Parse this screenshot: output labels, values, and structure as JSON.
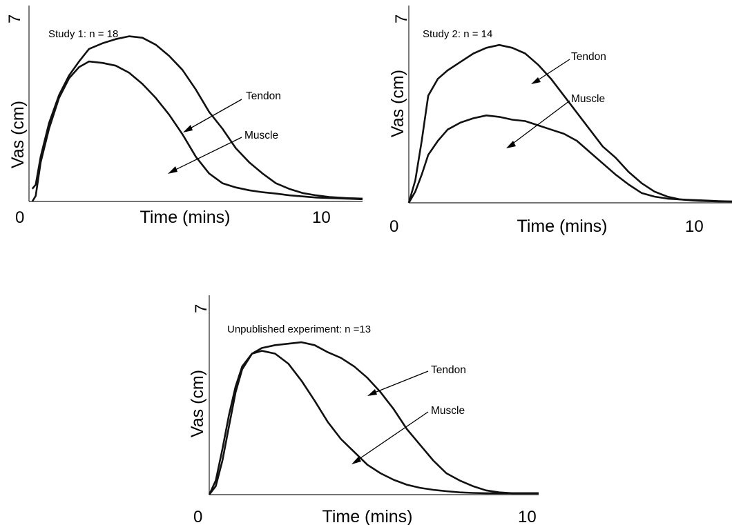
{
  "charts": [
    {
      "id": "study1",
      "annotation": "Study 1: n = 18",
      "xlabel": "Time (mins)",
      "ylabel": "Vas (cm)",
      "x_tick_start": "0",
      "x_tick_end": "10",
      "y_tick_top": "7",
      "callouts": [
        "Tendon",
        "Muscle"
      ]
    },
    {
      "id": "study2",
      "annotation": "Study 2: n = 14",
      "xlabel": "Time (mins)",
      "ylabel": "Vas (cm)",
      "x_tick_start": "0",
      "x_tick_end": "10",
      "y_tick_top": "7",
      "callouts": [
        "Tendon",
        "Muscle"
      ]
    },
    {
      "id": "unpublished",
      "annotation": "Unpublished experiment: n =13",
      "xlabel": "Time (mins)",
      "ylabel": "Vas (cm)",
      "x_tick_start": "0",
      "x_tick_end": "10",
      "y_tick_top": "7",
      "callouts": [
        "Tendon",
        "Muscle"
      ]
    }
  ],
  "chart_data": [
    {
      "type": "line",
      "xlim": [
        0,
        10
      ],
      "ylim": [
        0,
        7
      ],
      "series": [
        {
          "name": "Tendon",
          "x": [
            0.1,
            0.2,
            0.35,
            0.6,
            0.9,
            1.2,
            1.5,
            1.8,
            2.2,
            2.6,
            3.0,
            3.4,
            3.8,
            4.2,
            4.6,
            5.0,
            5.4,
            5.8,
            6.2,
            6.6,
            7.0,
            7.4,
            7.8,
            8.2,
            8.6,
            9.0,
            9.5,
            10.0
          ],
          "y": [
            0.45,
            0.6,
            1.6,
            2.8,
            3.8,
            4.5,
            5.0,
            5.45,
            5.65,
            5.8,
            5.9,
            5.85,
            5.6,
            5.2,
            4.7,
            4.0,
            3.2,
            2.6,
            1.9,
            1.4,
            1.0,
            0.65,
            0.45,
            0.3,
            0.22,
            0.16,
            0.12,
            0.1
          ]
        },
        {
          "name": "Muscle",
          "x": [
            0.1,
            0.2,
            0.35,
            0.6,
            0.9,
            1.2,
            1.5,
            1.8,
            2.2,
            2.6,
            3.0,
            3.4,
            3.8,
            4.2,
            4.6,
            5.0,
            5.4,
            5.8,
            6.2,
            6.6,
            7.0,
            7.4,
            7.8,
            8.2,
            8.6,
            9.0,
            9.5,
            10.0
          ],
          "y": [
            0.0,
            0.2,
            1.4,
            2.6,
            3.7,
            4.4,
            4.8,
            5.0,
            4.95,
            4.85,
            4.6,
            4.2,
            3.7,
            3.1,
            2.4,
            1.6,
            1.0,
            0.65,
            0.5,
            0.4,
            0.33,
            0.28,
            0.22,
            0.18,
            0.14,
            0.12,
            0.1,
            0.08
          ]
        }
      ]
    },
    {
      "type": "line",
      "xlim": [
        0,
        10
      ],
      "ylim": [
        0,
        7
      ],
      "series": [
        {
          "name": "Tendon",
          "x": [
            0.0,
            0.2,
            0.4,
            0.6,
            0.9,
            1.2,
            1.6,
            2.0,
            2.4,
            2.8,
            3.2,
            3.6,
            4.0,
            4.4,
            4.8,
            5.2,
            5.6,
            6.0,
            6.4,
            6.8,
            7.2,
            7.6,
            8.0,
            8.4,
            8.8,
            9.2,
            9.6,
            10.0
          ],
          "y": [
            0.0,
            0.8,
            2.2,
            3.8,
            4.4,
            4.7,
            5.0,
            5.3,
            5.5,
            5.6,
            5.5,
            5.3,
            4.9,
            4.4,
            3.8,
            3.2,
            2.6,
            2.0,
            1.6,
            1.1,
            0.7,
            0.4,
            0.22,
            0.12,
            0.08,
            0.06,
            0.05,
            0.05
          ]
        },
        {
          "name": "Muscle",
          "x": [
            0.0,
            0.2,
            0.4,
            0.6,
            0.9,
            1.2,
            1.6,
            2.0,
            2.4,
            2.8,
            3.2,
            3.6,
            4.0,
            4.4,
            4.8,
            5.2,
            5.6,
            6.0,
            6.4,
            6.8,
            7.2,
            7.6,
            8.0,
            8.4,
            8.8,
            9.2,
            9.6,
            10.0
          ],
          "y": [
            0.0,
            0.4,
            1.0,
            1.7,
            2.2,
            2.6,
            2.85,
            3.0,
            3.1,
            3.05,
            2.95,
            2.9,
            2.75,
            2.6,
            2.45,
            2.2,
            1.8,
            1.4,
            1.0,
            0.65,
            0.35,
            0.22,
            0.15,
            0.12,
            0.1,
            0.08,
            0.06,
            0.05
          ]
        }
      ]
    },
    {
      "type": "line",
      "xlim": [
        0,
        10
      ],
      "ylim": [
        0,
        7
      ],
      "series": [
        {
          "name": "Tendon",
          "x": [
            0.0,
            0.2,
            0.4,
            0.6,
            0.8,
            1.0,
            1.3,
            1.6,
            2.0,
            2.4,
            2.8,
            3.2,
            3.6,
            4.0,
            4.4,
            4.8,
            5.2,
            5.6,
            6.0,
            6.4,
            6.8,
            7.2,
            7.6,
            8.0,
            8.4,
            8.8,
            9.2,
            9.6,
            10.0
          ],
          "y": [
            0.0,
            0.3,
            1.2,
            2.4,
            3.6,
            4.4,
            4.95,
            5.15,
            5.25,
            5.3,
            5.35,
            5.25,
            5.0,
            4.8,
            4.5,
            4.1,
            3.6,
            3.0,
            2.3,
            1.75,
            1.2,
            0.75,
            0.5,
            0.3,
            0.15,
            0.08,
            0.05,
            0.05,
            0.05
          ]
        },
        {
          "name": "Muscle",
          "x": [
            0.0,
            0.2,
            0.4,
            0.6,
            0.8,
            1.0,
            1.3,
            1.6,
            2.0,
            2.4,
            2.8,
            3.2,
            3.6,
            4.0,
            4.4,
            4.8,
            5.2,
            5.6,
            6.0,
            6.4,
            6.8,
            7.2,
            7.6,
            8.0,
            8.4,
            8.8,
            9.2,
            9.6,
            10.0
          ],
          "y": [
            0.0,
            0.5,
            1.6,
            2.8,
            3.8,
            4.5,
            4.95,
            5.05,
            4.95,
            4.6,
            4.0,
            3.3,
            2.55,
            1.95,
            1.5,
            1.05,
            0.75,
            0.52,
            0.35,
            0.24,
            0.17,
            0.12,
            0.08,
            0.06,
            0.05,
            0.05,
            0.05,
            0.05,
            0.05
          ]
        }
      ]
    }
  ]
}
